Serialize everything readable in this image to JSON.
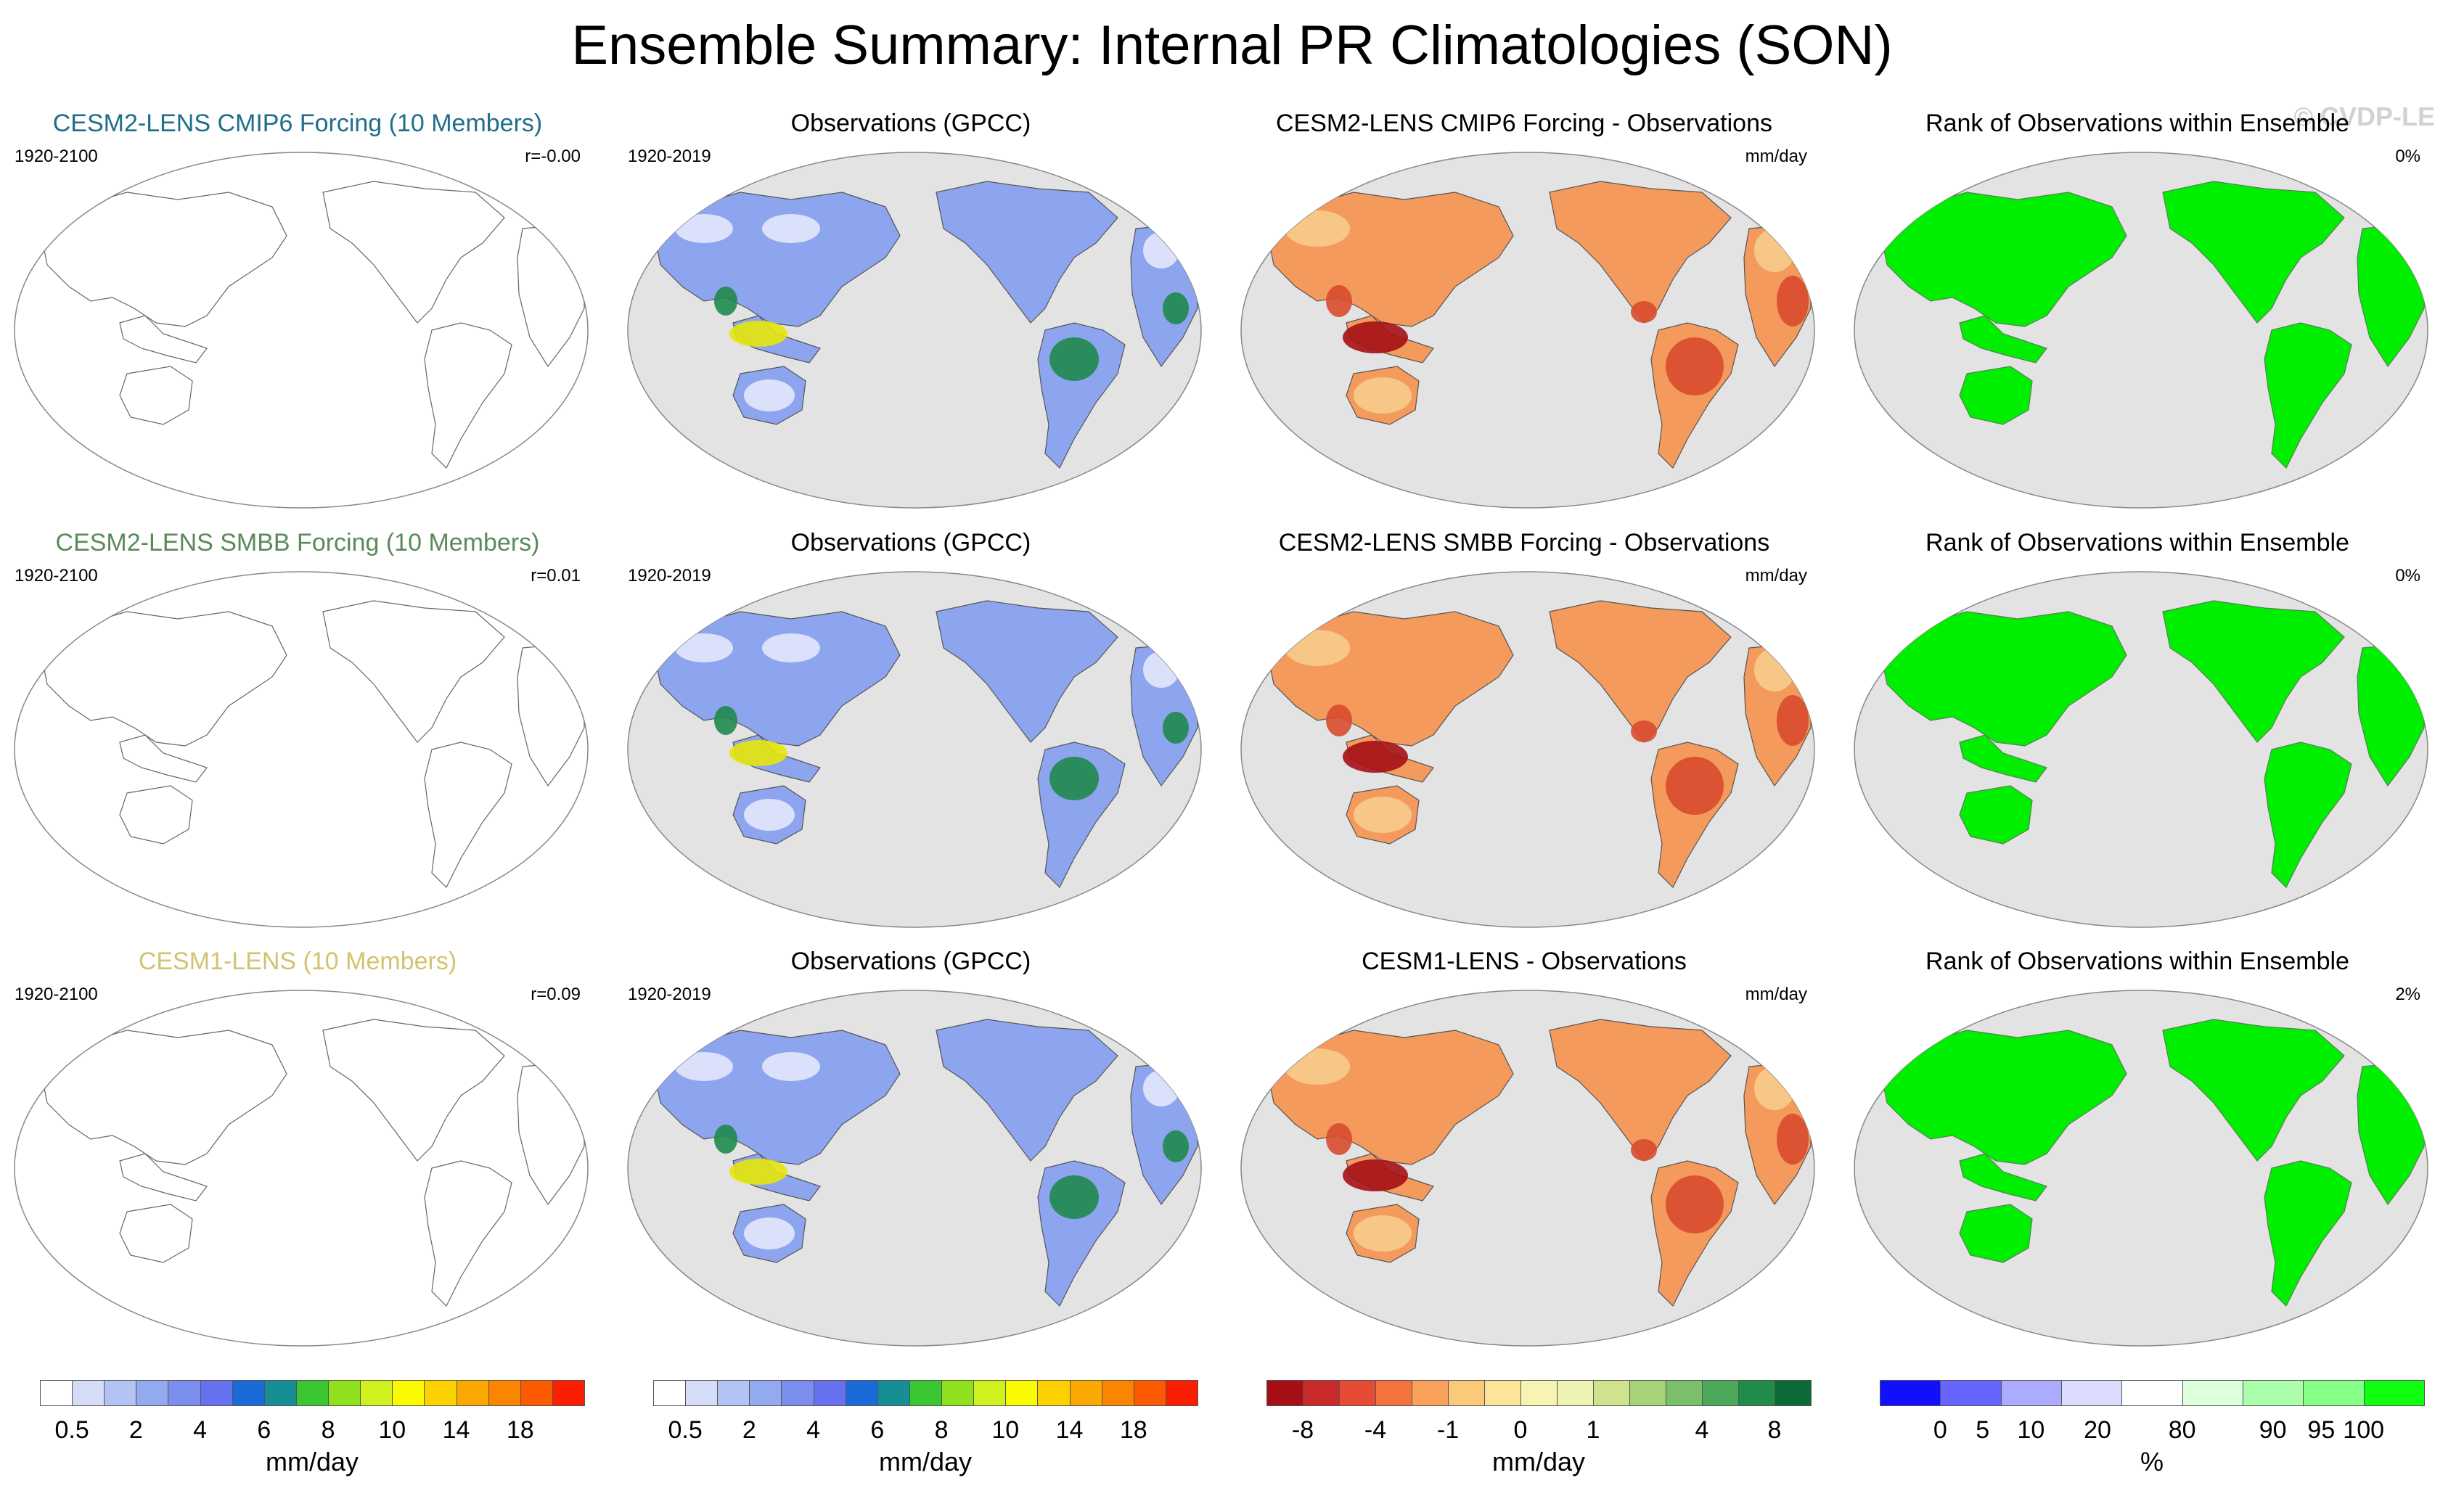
{
  "title": "Ensemble Summary: Internal PR Climatologies (SON)",
  "watermark": "© CVDP-LE",
  "colors": {
    "cesm2_cmip6": "#1f6f8b",
    "cesm2_smbb": "#5a8a5a",
    "cesm1": "#d2c36e",
    "ocean_fill": "#e3e3e3",
    "rank_fill": "#00ee00"
  },
  "rows": [
    {
      "model": {
        "title": "CESM2-LENS CMIP6 Forcing (10 Members)",
        "years": "1920-2100",
        "corr": "r=-0.00",
        "color_key": "cesm2_cmip6"
      },
      "obs": {
        "title": "Observations (GPCC)",
        "years": "1920-2019"
      },
      "diff": {
        "title": "CESM2-LENS CMIP6 Forcing - Observations",
        "units": "mm/day"
      },
      "rank": {
        "title": "Rank of Observations within Ensemble",
        "pct": "0%"
      }
    },
    {
      "model": {
        "title": "CESM2-LENS SMBB Forcing (10 Members)",
        "years": "1920-2100",
        "corr": "r=0.01",
        "color_key": "cesm2_smbb"
      },
      "obs": {
        "title": "Observations (GPCC)",
        "years": "1920-2019"
      },
      "diff": {
        "title": "CESM2-LENS SMBB Forcing - Observations",
        "units": "mm/day"
      },
      "rank": {
        "title": "Rank of Observations within Ensemble",
        "pct": "0%"
      }
    },
    {
      "model": {
        "title": "CESM1-LENS (10 Members)",
        "years": "1920-2100",
        "corr": "r=0.09",
        "color_key": "cesm1"
      },
      "obs": {
        "title": "Observations (GPCC)",
        "years": "1920-2019"
      },
      "diff": {
        "title": "CESM1-LENS - Observations",
        "units": "mm/day"
      },
      "rank": {
        "title": "Rank of Observations within Ensemble",
        "pct": "2%"
      }
    }
  ],
  "colorbars": [
    {
      "id": "pr",
      "unit": "mm/day",
      "colors": [
        "#ffffff",
        "#d4dcf7",
        "#b3c3f3",
        "#93a9f0",
        "#7c8df0",
        "#6671ef",
        "#1a6ad8",
        "#178d95",
        "#39c630",
        "#8ee11c",
        "#cff21f",
        "#fbfb00",
        "#fbd200",
        "#fba800",
        "#fb8400",
        "#fb5a00",
        "#fb1e00"
      ],
      "ticks": [
        {
          "label": "0.5",
          "edge": 1
        },
        {
          "label": "2",
          "edge": 3
        },
        {
          "label": "4",
          "edge": 5
        },
        {
          "label": "6",
          "edge": 7
        },
        {
          "label": "8",
          "edge": 9
        },
        {
          "label": "10",
          "edge": 11
        },
        {
          "label": "14",
          "edge": 13
        },
        {
          "label": "18",
          "edge": 15
        }
      ]
    },
    {
      "id": "pr-obs",
      "unit": "mm/day",
      "colors": [
        "#ffffff",
        "#d4dcf7",
        "#b3c3f3",
        "#93a9f0",
        "#7c8df0",
        "#6671ef",
        "#1a6ad8",
        "#178d95",
        "#39c630",
        "#8ee11c",
        "#cff21f",
        "#fbfb00",
        "#fbd200",
        "#fba800",
        "#fb8400",
        "#fb5a00",
        "#fb1e00"
      ],
      "ticks": [
        {
          "label": "0.5",
          "edge": 1
        },
        {
          "label": "2",
          "edge": 3
        },
        {
          "label": "4",
          "edge": 5
        },
        {
          "label": "6",
          "edge": 7
        },
        {
          "label": "8",
          "edge": 9
        },
        {
          "label": "10",
          "edge": 11
        },
        {
          "label": "14",
          "edge": 13
        },
        {
          "label": "18",
          "edge": 15
        }
      ]
    },
    {
      "id": "diff",
      "unit": "mm/day",
      "colors": [
        "#a50f15",
        "#cb2a2a",
        "#e64b35",
        "#f4733c",
        "#f9a05a",
        "#fbc97a",
        "#fde49b",
        "#f7f3b3",
        "#eef2b3",
        "#cfe28e",
        "#a8d27a",
        "#7cbf6a",
        "#4ca95a",
        "#1f8c4a",
        "#0b6a37"
      ],
      "ticks": [
        {
          "label": "-8",
          "edge": 1
        },
        {
          "label": "-4",
          "edge": 3
        },
        {
          "label": "-1",
          "edge": 5
        },
        {
          "label": "0",
          "edge": 7
        },
        {
          "label": "1",
          "edge": 9
        },
        {
          "label": "4",
          "edge": 12
        },
        {
          "label": "8",
          "edge": 14
        }
      ]
    },
    {
      "id": "rank",
      "unit": "%",
      "colors": [
        "#1010ff",
        "#6666ff",
        "#ababff",
        "#dcdcff",
        "#ffffff",
        "#dcffdc",
        "#abffab",
        "#85ff85",
        "#10ff10"
      ],
      "ticks": [
        {
          "label": "0",
          "edge": 1
        },
        {
          "label": "5",
          "edge": 1.7
        },
        {
          "label": "10",
          "edge": 2.5
        },
        {
          "label": "20",
          "edge": 3.6
        },
        {
          "label": "80",
          "edge": 5
        },
        {
          "label": "90",
          "edge": 6.5
        },
        {
          "label": "95",
          "edge": 7.3
        },
        {
          "label": "100",
          "edge": 8
        }
      ]
    }
  ],
  "maps": {
    "obs_land": {
      "low": "#dfe5fb",
      "mid": "#8da4ee",
      "high": "#3f5fd8",
      "wet1": "#1f8a4c",
      "wet2": "#e6e60a"
    },
    "diff_land": {
      "dry": "#f7c98a",
      "mid": "#f39a5c",
      "strong": "#d84b2e",
      "extreme": "#a50f15"
    }
  }
}
